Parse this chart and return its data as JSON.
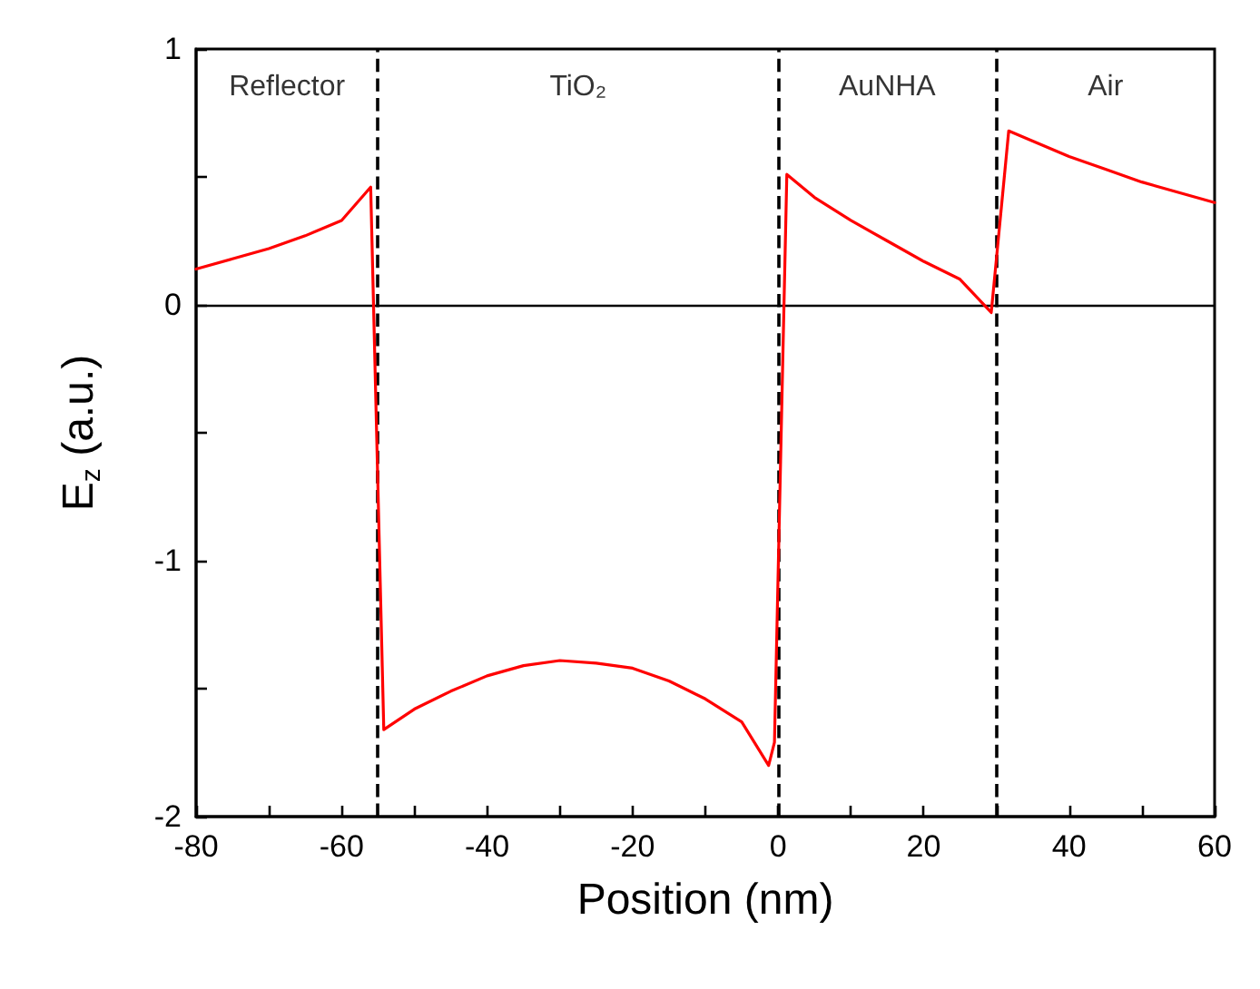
{
  "chart_data": {
    "type": "line",
    "xlabel": "Position (nm)",
    "ylabel": "E$_{z}$ (a.u.)",
    "x": [
      -80,
      -75,
      -70,
      -65,
      -60,
      -56,
      -54.2,
      -50,
      -45,
      -40,
      -35,
      -30,
      -25,
      -20,
      -15,
      -10,
      -5,
      -1.3,
      -0.5,
      1.2,
      5,
      10,
      15,
      20,
      25,
      29.3,
      31.7,
      35,
      40,
      45,
      50,
      55,
      60
    ],
    "series": [
      {
        "color": "#ff0000",
        "values": [
          0.14,
          0.18,
          0.22,
          0.27,
          0.33,
          0.46,
          -1.66,
          -1.58,
          -1.51,
          -1.45,
          -1.41,
          -1.39,
          -1.4,
          -1.42,
          -1.47,
          -1.54,
          -1.63,
          -1.8,
          -1.71,
          0.51,
          0.42,
          0.33,
          0.25,
          0.17,
          0.1,
          -0.03,
          0.68,
          0.64,
          0.58,
          0.53,
          0.48,
          0.44,
          0.4
        ]
      }
    ],
    "xlim": [
      -80,
      60
    ],
    "xticks": [
      -80,
      {
        "value": -70,
        "label": null
      },
      -60,
      {
        "value": -50,
        "label": null
      },
      -40,
      {
        "value": -30,
        "label": null
      },
      -20,
      {
        "value": -10,
        "label": null
      },
      0,
      {
        "value": 10,
        "label": null
      },
      20,
      {
        "value": 30,
        "label": null
      },
      40,
      {
        "value": 50,
        "label": null
      },
      60
    ],
    "ylim": [
      -2,
      1
    ],
    "yticks": [
      -2,
      {
        "value": -1.5,
        "label": null
      },
      -1,
      {
        "value": -0.5,
        "label": null
      },
      0,
      {
        "value": 0.5,
        "label": null
      },
      1
    ],
    "ref_lines": [
      {
        "axis": "y",
        "value": 0,
        "color": "#000000",
        "line_style": "solid"
      },
      {
        "axis": "x",
        "value": -55,
        "color": "#000000",
        "line_style": "dashed"
      },
      {
        "axis": "x",
        "value": 0,
        "color": "#000000",
        "line_style": "dashed"
      },
      {
        "axis": "x",
        "value": 30,
        "color": "#000000",
        "line_style": "dashed"
      }
    ],
    "annotations": [
      "Reflector",
      "TiO₂",
      "AuNHA",
      "Air"
    ],
    "grid": false,
    "marker": "none",
    "line_style": "solid"
  }
}
